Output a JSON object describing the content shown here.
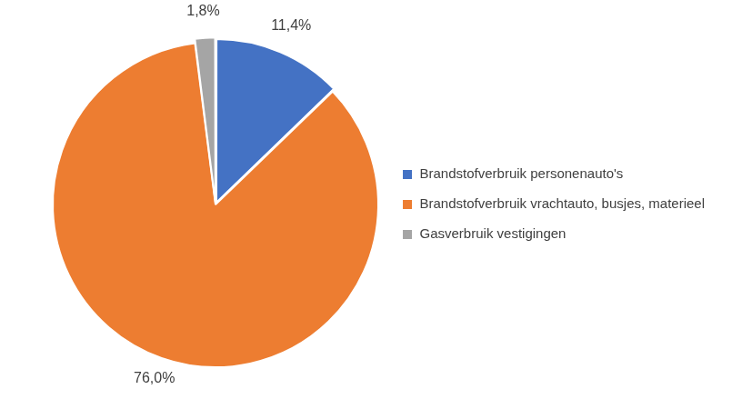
{
  "chart_data": {
    "type": "pie",
    "categories": [
      "Brandstofverbruik personenauto's",
      "Brandstofverbruik vrachtauto, busjes, materieel",
      "Gasverbruik vestigingen"
    ],
    "values": [
      11.4,
      76.0,
      1.8
    ],
    "value_labels": [
      "11,4%",
      "76,0%",
      "1,8%"
    ],
    "colors": [
      "#4472c4",
      "#ed7d31",
      "#a5a5a5"
    ],
    "data_labels": true,
    "legend": "right"
  }
}
